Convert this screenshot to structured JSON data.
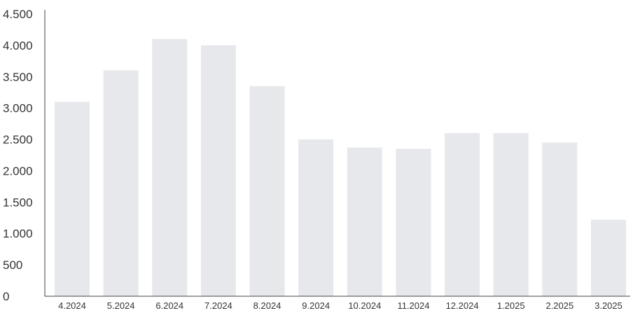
{
  "chart_data": {
    "type": "bar",
    "title": "",
    "xlabel": "",
    "ylabel": "",
    "categories": [
      "4.2024",
      "5.2024",
      "6.2024",
      "7.2024",
      "8.2024",
      "9.2024",
      "10.2024",
      "11.2024",
      "12.2024",
      "1.2025",
      "2.2025",
      "3.2025"
    ],
    "values": [
      3100,
      3600,
      4100,
      4000,
      3350,
      2500,
      2370,
      2350,
      2600,
      2600,
      2450,
      1220
    ],
    "ylim": [
      0,
      4500
    ],
    "yticks": [
      0,
      500,
      1000,
      1500,
      2000,
      2500,
      3000,
      3500,
      4000,
      4500
    ],
    "ytick_labels": [
      "0",
      "500",
      "1.000",
      "1.500",
      "2.000",
      "2.500",
      "3.000",
      "3.500",
      "4.000",
      "4.500"
    ],
    "grid": false,
    "legend": "none",
    "bar_color": "#e6e8ec",
    "axis_color": "#444444"
  }
}
